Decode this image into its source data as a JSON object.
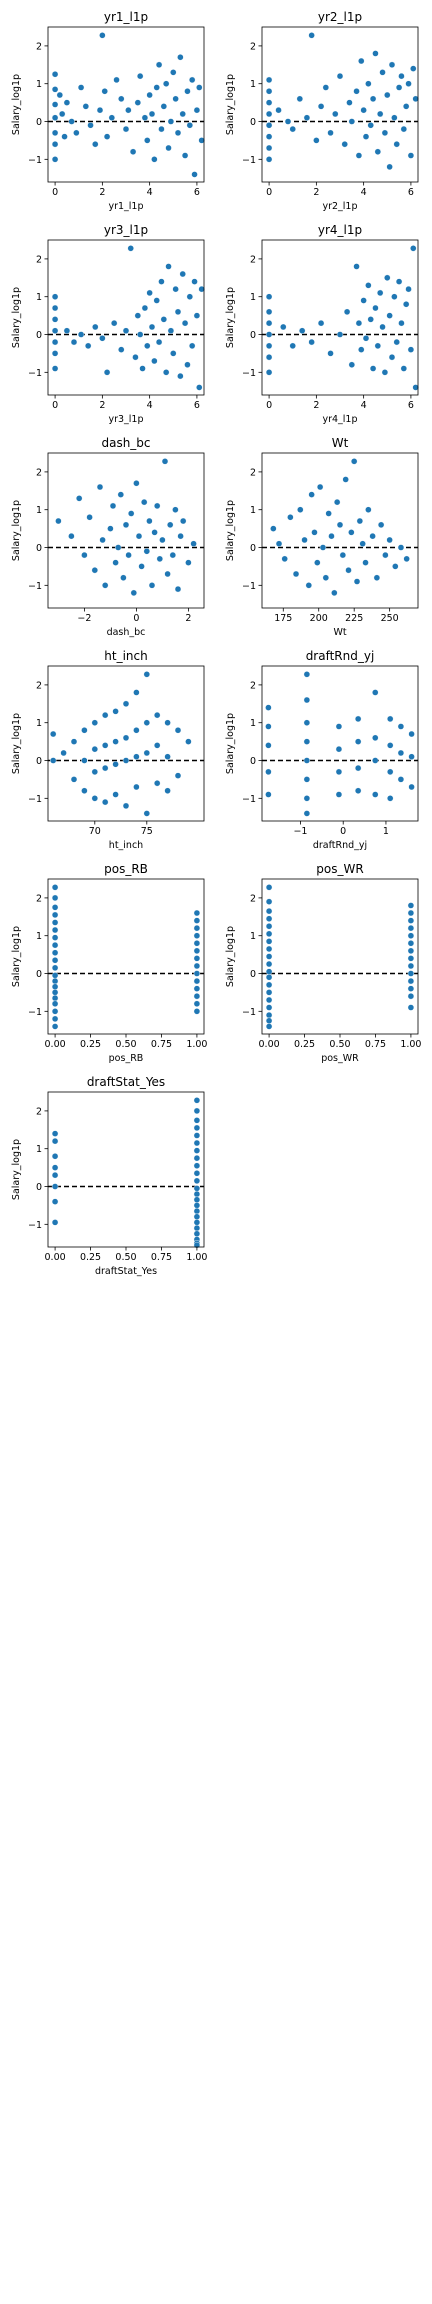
{
  "figure": {
    "layout": "6 rows x 2 columns, 11 subplots (last cell empty)"
  },
  "style": {
    "marker_color": "#1f77b4",
    "refline_color": "#000000"
  },
  "chart_data": [
    {
      "type": "scatter",
      "title": "yr1_l1p",
      "xlabel": "yr1_l1p",
      "ylabel": "Salary_log1p",
      "xlim": [
        -0.3,
        6.3
      ],
      "ylim": [
        -1.6,
        2.5
      ],
      "xticks": [
        0,
        2,
        4,
        6
      ],
      "xtick_labels": [
        "0",
        "2",
        "4",
        "6"
      ],
      "yticks": [
        -1,
        0,
        1,
        2
      ],
      "ytick_labels": [
        "−1",
        "0",
        "1",
        "2"
      ],
      "reference_line_y": 0,
      "x": [
        0,
        0,
        0,
        0,
        0,
        0,
        0,
        0.2,
        0.3,
        0.4,
        0.5,
        0.7,
        0.9,
        1.1,
        1.3,
        1.5,
        1.7,
        1.9,
        2.0,
        2.1,
        2.2,
        2.4,
        2.6,
        2.8,
        3.0,
        3.1,
        3.3,
        3.5,
        3.6,
        3.8,
        3.9,
        4.0,
        4.1,
        4.2,
        4.3,
        4.4,
        4.5,
        4.6,
        4.7,
        4.8,
        4.9,
        5.0,
        5.1,
        5.2,
        5.3,
        5.4,
        5.5,
        5.6,
        5.7,
        5.8,
        5.9,
        6.0,
        6.1,
        6.2
      ],
      "y": [
        1.25,
        0.85,
        0.45,
        0.1,
        -0.3,
        -0.6,
        -1.0,
        0.7,
        0.2,
        -0.4,
        0.5,
        0.0,
        -0.3,
        0.9,
        0.4,
        -0.1,
        -0.6,
        0.3,
        2.28,
        0.8,
        -0.4,
        0.1,
        1.1,
        0.6,
        -0.2,
        0.3,
        -0.8,
        0.5,
        1.2,
        0.1,
        -0.5,
        0.7,
        0.2,
        -1.0,
        0.9,
        1.5,
        -0.2,
        0.4,
        1.0,
        -0.7,
        0.0,
        1.3,
        0.6,
        -0.3,
        1.7,
        0.2,
        -0.9,
        0.8,
        -0.1,
        1.1,
        -1.4,
        0.3,
        0.9,
        -0.5
      ]
    },
    {
      "type": "scatter",
      "title": "yr2_l1p",
      "xlabel": "yr2_l1p",
      "ylabel": "Salary_log1p",
      "xlim": [
        -0.3,
        6.3
      ],
      "ylim": [
        -1.6,
        2.5
      ],
      "xticks": [
        0,
        2,
        4,
        6
      ],
      "xtick_labels": [
        "0",
        "2",
        "4",
        "6"
      ],
      "yticks": [
        -1,
        0,
        1,
        2
      ],
      "ytick_labels": [
        "−1",
        "0",
        "1",
        "2"
      ],
      "reference_line_y": 0,
      "x": [
        0,
        0,
        0,
        0,
        0,
        0,
        0,
        0,
        0.4,
        0.8,
        1.0,
        1.3,
        1.6,
        1.8,
        2.0,
        2.2,
        2.4,
        2.6,
        2.8,
        3.0,
        3.2,
        3.4,
        3.5,
        3.7,
        3.8,
        3.9,
        4.0,
        4.1,
        4.2,
        4.3,
        4.4,
        4.5,
        4.6,
        4.7,
        4.8,
        4.9,
        5.0,
        5.1,
        5.2,
        5.3,
        5.4,
        5.5,
        5.6,
        5.7,
        5.8,
        5.9,
        6.0,
        6.1,
        6.2
      ],
      "y": [
        1.1,
        0.8,
        0.5,
        0.2,
        -0.1,
        -0.4,
        -0.7,
        -1.0,
        0.3,
        0.0,
        -0.2,
        0.6,
        0.1,
        2.28,
        -0.5,
        0.4,
        0.9,
        -0.3,
        0.2,
        1.2,
        -0.6,
        0.5,
        0.0,
        0.8,
        -0.9,
        1.6,
        0.3,
        -0.4,
        1.0,
        -0.1,
        0.6,
        1.8,
        -0.8,
        0.2,
        1.3,
        -0.3,
        0.7,
        -1.2,
        1.5,
        0.1,
        -0.6,
        0.9,
        1.2,
        -0.2,
        0.4,
        1.0,
        -0.9,
        1.4,
        0.6
      ]
    },
    {
      "type": "scatter",
      "title": "yr3_l1p",
      "xlabel": "yr3_l1p",
      "ylabel": "Salary_log1p",
      "xlim": [
        -0.3,
        6.3
      ],
      "ylim": [
        -1.6,
        2.5
      ],
      "xticks": [
        0,
        2,
        4,
        6
      ],
      "xtick_labels": [
        "0",
        "2",
        "4",
        "6"
      ],
      "yticks": [
        -1,
        0,
        1,
        2
      ],
      "ytick_labels": [
        "−1",
        "0",
        "1",
        "2"
      ],
      "reference_line_y": 0,
      "x": [
        0,
        0,
        0,
        0,
        0,
        0,
        0,
        0.5,
        0.8,
        1.1,
        1.4,
        1.7,
        2.0,
        2.2,
        2.5,
        2.8,
        3.0,
        3.2,
        3.4,
        3.5,
        3.6,
        3.7,
        3.8,
        3.9,
        4.0,
        4.1,
        4.2,
        4.3,
        4.4,
        4.5,
        4.6,
        4.7,
        4.8,
        4.9,
        5.0,
        5.1,
        5.2,
        5.3,
        5.4,
        5.5,
        5.6,
        5.7,
        5.8,
        5.9,
        6.0,
        6.1,
        6.2
      ],
      "y": [
        1.0,
        0.7,
        0.4,
        0.1,
        -0.2,
        -0.5,
        -0.9,
        0.1,
        -0.2,
        0.0,
        -0.3,
        0.2,
        -0.1,
        -1.0,
        0.3,
        -0.4,
        0.1,
        2.28,
        -0.6,
        0.5,
        0.0,
        -0.9,
        0.7,
        -0.3,
        1.1,
        0.2,
        -0.7,
        0.9,
        -0.2,
        1.4,
        0.4,
        -1.0,
        1.8,
        0.1,
        -0.5,
        1.2,
        0.6,
        -1.1,
        1.6,
        0.3,
        -0.8,
        1.0,
        -0.3,
        1.4,
        0.5,
        -1.4,
        1.2
      ]
    },
    {
      "type": "scatter",
      "title": "yr4_l1p",
      "xlabel": "yr4_l1p",
      "ylabel": "Salary_log1p",
      "xlim": [
        -0.3,
        6.3
      ],
      "ylim": [
        -1.6,
        2.5
      ],
      "xticks": [
        0,
        2,
        4,
        6
      ],
      "xtick_labels": [
        "0",
        "2",
        "4",
        "6"
      ],
      "yticks": [
        -1,
        0,
        1,
        2
      ],
      "ytick_labels": [
        "−1",
        "0",
        "1",
        "2"
      ],
      "reference_line_y": 0,
      "x": [
        0,
        0,
        0,
        0,
        0,
        0,
        0,
        0.6,
        1.0,
        1.4,
        1.8,
        2.2,
        2.6,
        3.0,
        3.3,
        3.5,
        3.7,
        3.8,
        3.9,
        4.0,
        4.1,
        4.2,
        4.3,
        4.4,
        4.5,
        4.6,
        4.7,
        4.8,
        4.9,
        5.0,
        5.1,
        5.2,
        5.3,
        5.4,
        5.5,
        5.6,
        5.7,
        5.8,
        5.9,
        6.0,
        6.1,
        6.2
      ],
      "y": [
        1.0,
        0.6,
        0.3,
        0.0,
        -0.3,
        -0.6,
        -1.0,
        0.2,
        -0.3,
        0.1,
        -0.2,
        0.3,
        -0.5,
        0.0,
        0.6,
        -0.8,
        1.8,
        0.3,
        -0.4,
        0.9,
        -0.1,
        1.3,
        0.4,
        -0.9,
        0.7,
        -0.3,
        1.1,
        0.2,
        -1.0,
        1.5,
        0.5,
        -0.6,
        1.0,
        -0.2,
        1.4,
        0.3,
        -0.9,
        0.8,
        1.2,
        -0.4,
        2.28,
        -1.4
      ]
    },
    {
      "type": "scatter",
      "title": "dash_bc",
      "xlabel": "dash_bc",
      "ylabel": "Salary_log1p",
      "xlim": [
        -3.4,
        2.6
      ],
      "ylim": [
        -1.6,
        2.5
      ],
      "xticks": [
        -2,
        0,
        2
      ],
      "xtick_labels": [
        "−2",
        "0",
        "2"
      ],
      "yticks": [
        -1,
        0,
        1,
        2
      ],
      "ytick_labels": [
        "−1",
        "0",
        "1",
        "2"
      ],
      "reference_line_y": 0,
      "x": [
        -3.0,
        -2.5,
        -2.2,
        -2.0,
        -1.8,
        -1.6,
        -1.4,
        -1.3,
        -1.2,
        -1.0,
        -0.9,
        -0.8,
        -0.7,
        -0.6,
        -0.5,
        -0.4,
        -0.3,
        -0.2,
        -0.1,
        0.0,
        0.1,
        0.2,
        0.3,
        0.4,
        0.5,
        0.6,
        0.7,
        0.8,
        0.9,
        1.0,
        1.1,
        1.2,
        1.3,
        1.4,
        1.5,
        1.6,
        1.7,
        1.8,
        2.0,
        2.2
      ],
      "y": [
        0.7,
        0.3,
        1.3,
        -0.2,
        0.8,
        -0.6,
        1.6,
        0.2,
        -1.0,
        0.5,
        1.1,
        -0.4,
        0.0,
        1.4,
        -0.8,
        0.6,
        -0.2,
        0.9,
        -1.2,
        1.7,
        0.3,
        -0.5,
        1.2,
        -0.1,
        0.7,
        -1.0,
        0.4,
        1.1,
        -0.3,
        0.2,
        2.28,
        -0.7,
        0.6,
        -0.2,
        1.0,
        -1.1,
        0.3,
        0.7,
        -0.4,
        0.1
      ]
    },
    {
      "type": "scatter",
      "title": "Wt",
      "xlabel": "Wt",
      "ylabel": "Salary_log1p",
      "xlim": [
        160,
        270
      ],
      "ylim": [
        -1.6,
        2.5
      ],
      "xticks": [
        175,
        200,
        225,
        250
      ],
      "xtick_labels": [
        "175",
        "200",
        "225",
        "250"
      ],
      "yticks": [
        -1,
        0,
        1,
        2
      ],
      "ytick_labels": [
        "−1",
        "0",
        "1",
        "2"
      ],
      "reference_line_y": 0,
      "x": [
        168,
        172,
        176,
        180,
        184,
        187,
        190,
        193,
        195,
        197,
        199,
        201,
        203,
        205,
        207,
        209,
        211,
        213,
        215,
        217,
        219,
        221,
        223,
        225,
        227,
        229,
        231,
        233,
        235,
        238,
        241,
        244,
        247,
        250,
        254,
        258,
        262
      ],
      "y": [
        0.5,
        0.1,
        -0.3,
        0.8,
        -0.7,
        1.0,
        0.2,
        -1.0,
        1.4,
        0.4,
        -0.4,
        1.6,
        0.0,
        -0.8,
        0.9,
        0.3,
        -1.2,
        1.2,
        0.6,
        -0.2,
        1.8,
        -0.6,
        0.4,
        2.28,
        -0.9,
        0.7,
        0.1,
        -0.4,
        1.0,
        0.3,
        -0.8,
        0.6,
        -0.2,
        0.2,
        -0.5,
        0.0,
        -0.3
      ]
    },
    {
      "type": "scatter",
      "title": "ht_inch",
      "xlabel": "ht_inch",
      "ylabel": "Salary_log1p",
      "xlim": [
        65.5,
        80.5
      ],
      "ylim": [
        -1.6,
        2.5
      ],
      "xticks": [
        70,
        75
      ],
      "xtick_labels": [
        "70",
        "75"
      ],
      "yticks": [
        -1,
        0,
        1,
        2
      ],
      "ytick_labels": [
        "−1",
        "0",
        "1",
        "2"
      ],
      "reference_line_y": 0,
      "x": [
        66,
        66,
        67,
        68,
        68,
        69,
        69,
        69,
        70,
        70,
        70,
        70,
        71,
        71,
        71,
        71,
        72,
        72,
        72,
        72,
        73,
        73,
        73,
        73,
        74,
        74,
        74,
        74,
        75,
        75,
        75,
        75,
        76,
        76,
        76,
        77,
        77,
        77,
        78,
        78,
        79
      ],
      "y": [
        0.7,
        0.0,
        0.2,
        0.5,
        -0.5,
        0.8,
        0.0,
        -0.8,
        1.0,
        0.3,
        -0.3,
        -1.0,
        1.2,
        0.4,
        -0.2,
        -1.1,
        1.3,
        0.5,
        -0.1,
        -0.9,
        1.5,
        0.6,
        0.0,
        -1.2,
        1.8,
        0.8,
        0.1,
        -0.7,
        2.28,
        1.0,
        0.2,
        -1.4,
        1.2,
        0.4,
        -0.6,
        1.0,
        0.1,
        -0.8,
        0.8,
        -0.4,
        0.5
      ]
    },
    {
      "type": "scatter",
      "title": "draftRnd_yj",
      "xlabel": "draftRnd_yj",
      "ylabel": "Salary_log1p",
      "xlim": [
        -1.9,
        1.75
      ],
      "ylim": [
        -1.6,
        2.5
      ],
      "xticks": [
        -1,
        0,
        1
      ],
      "xtick_labels": [
        "−1",
        "0",
        "1"
      ],
      "yticks": [
        -1,
        0,
        1,
        2
      ],
      "ytick_labels": [
        "−1",
        "0",
        "1",
        "2"
      ],
      "reference_line_y": 0,
      "x": [
        -1.75,
        -1.75,
        -1.75,
        -1.75,
        -1.75,
        -0.85,
        -0.85,
        -0.85,
        -0.85,
        -0.85,
        -0.85,
        -0.85,
        -0.85,
        -0.1,
        -0.1,
        -0.1,
        -0.1,
        0.35,
        0.35,
        0.35,
        0.35,
        0.75,
        0.75,
        0.75,
        0.75,
        1.1,
        1.1,
        1.1,
        1.1,
        1.35,
        1.35,
        1.35,
        1.6,
        1.6,
        1.6
      ],
      "y": [
        1.4,
        0.9,
        0.4,
        -0.3,
        -0.9,
        2.28,
        1.6,
        1.0,
        0.5,
        0.0,
        -0.5,
        -1.0,
        -1.4,
        0.9,
        0.3,
        -0.3,
        -0.9,
        1.1,
        0.5,
        -0.2,
        -0.8,
        1.8,
        0.6,
        0.0,
        -0.9,
        1.1,
        0.4,
        -0.3,
        -1.0,
        0.9,
        0.2,
        -0.5,
        0.7,
        0.1,
        -0.7
      ]
    },
    {
      "type": "scatter",
      "title": "pos_RB",
      "xlabel": "pos_RB",
      "ylabel": "Salary_log1p",
      "xlim": [
        -0.05,
        1.05
      ],
      "ylim": [
        -1.6,
        2.5
      ],
      "xticks": [
        0.0,
        0.25,
        0.5,
        0.75,
        1.0
      ],
      "xtick_labels": [
        "0.00",
        "0.25",
        "0.50",
        "0.75",
        "1.00"
      ],
      "yticks": [
        -1,
        0,
        1,
        2
      ],
      "ytick_labels": [
        "−1",
        "0",
        "1",
        "2"
      ],
      "reference_line_y": 0,
      "x": [
        0,
        0,
        0,
        0,
        0,
        0,
        0,
        0,
        0,
        0,
        0,
        0,
        0,
        0,
        0,
        0,
        0,
        0,
        0,
        0,
        1,
        1,
        1,
        1,
        1,
        1,
        1,
        1,
        1,
        1,
        1,
        1,
        1,
        1
      ],
      "y": [
        2.28,
        2.0,
        1.75,
        1.55,
        1.35,
        1.15,
        0.95,
        0.75,
        0.55,
        0.35,
        0.15,
        -0.05,
        -0.2,
        -0.35,
        -0.5,
        -0.65,
        -0.8,
        -1.0,
        -1.2,
        -1.4,
        1.6,
        1.4,
        1.2,
        1.0,
        0.8,
        0.6,
        0.4,
        0.2,
        0.0,
        -0.2,
        -0.4,
        -0.6,
        -0.8,
        -1.0
      ]
    },
    {
      "type": "scatter",
      "title": "pos_WR",
      "xlabel": "pos_WR",
      "ylabel": "Salary_log1p",
      "xlim": [
        -0.05,
        1.05
      ],
      "ylim": [
        -1.6,
        2.5
      ],
      "xticks": [
        0.0,
        0.25,
        0.5,
        0.75,
        1.0
      ],
      "xtick_labels": [
        "0.00",
        "0.25",
        "0.50",
        "0.75",
        "1.00"
      ],
      "yticks": [
        -1,
        0,
        1,
        2
      ],
      "ytick_labels": [
        "−1",
        "0",
        "1",
        "2"
      ],
      "reference_line_y": 0,
      "x": [
        0,
        0,
        0,
        0,
        0,
        0,
        0,
        0,
        0,
        0,
        0,
        0,
        0,
        0,
        0,
        0,
        0,
        0,
        0,
        1,
        1,
        1,
        1,
        1,
        1,
        1,
        1,
        1,
        1,
        1,
        1,
        1,
        1
      ],
      "y": [
        2.28,
        1.9,
        1.65,
        1.45,
        1.25,
        1.05,
        0.85,
        0.65,
        0.45,
        0.25,
        0.05,
        -0.1,
        -0.3,
        -0.5,
        -0.7,
        -0.9,
        -1.1,
        -1.25,
        -1.4,
        1.8,
        1.6,
        1.4,
        1.2,
        1.0,
        0.8,
        0.6,
        0.4,
        0.2,
        0.0,
        -0.2,
        -0.4,
        -0.6,
        -0.9
      ]
    },
    {
      "type": "scatter",
      "title": "draftStat_Yes",
      "xlabel": "draftStat_Yes",
      "ylabel": "Salary_log1p",
      "xlim": [
        -0.05,
        1.05
      ],
      "ylim": [
        -1.6,
        2.5
      ],
      "xticks": [
        0.0,
        0.25,
        0.5,
        0.75,
        1.0
      ],
      "xtick_labels": [
        "0.00",
        "0.25",
        "0.50",
        "0.75",
        "1.00"
      ],
      "yticks": [
        -1,
        0,
        1,
        2
      ],
      "ytick_labels": [
        "−1",
        "0",
        "1",
        "2"
      ],
      "reference_line_y": 0,
      "x": [
        0,
        0,
        0,
        0,
        0,
        0,
        0,
        0,
        1,
        1,
        1,
        1,
        1,
        1,
        1,
        1,
        1,
        1,
        1,
        1,
        1,
        1,
        1,
        1,
        1,
        1,
        1,
        1,
        1,
        1,
        1
      ],
      "y": [
        1.4,
        1.2,
        0.8,
        0.5,
        0.3,
        0.0,
        -0.4,
        -0.95,
        2.28,
        2.0,
        1.75,
        1.55,
        1.35,
        1.15,
        0.95,
        0.75,
        0.55,
        0.35,
        0.15,
        -0.05,
        -0.2,
        -0.35,
        -0.5,
        -0.65,
        -0.8,
        -0.95,
        -1.1,
        -1.25,
        -1.4,
        -1.5,
        -1.55
      ]
    }
  ]
}
